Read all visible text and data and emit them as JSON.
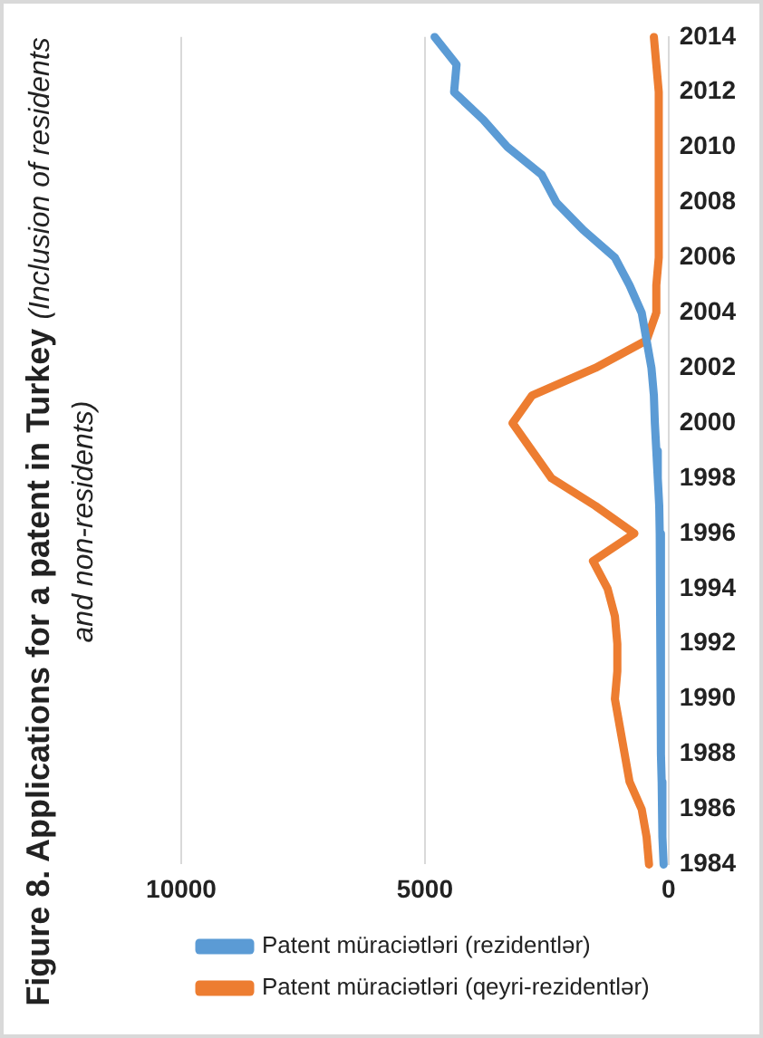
{
  "chart_data": {
    "type": "line",
    "title": "Figure 8. Applications for a patent in Turkey",
    "subtitle": "(Inclusion of residents and non-residents)",
    "categories": [
      "2014",
      null,
      "2012",
      null,
      "2010",
      null,
      "2008",
      null,
      "2006",
      null,
      "2004",
      null,
      "2002",
      null,
      "2000",
      null,
      "1998",
      null,
      "1996",
      null,
      "1994",
      null,
      "1992",
      null,
      "1990",
      null,
      "1988",
      null,
      "1986",
      null,
      "1984"
    ],
    "series": [
      {
        "name": "Patent müraciətləri (rezidentlər)",
        "color": "#5b9bd5",
        "values": [
          4800,
          4350,
          4400,
          3800,
          3300,
          2600,
          2300,
          1750,
          1100,
          800,
          550,
          450,
          350,
          300,
          280,
          250,
          220,
          190,
          180,
          170,
          160,
          160,
          150,
          150,
          150,
          150,
          150,
          140,
          130,
          120,
          100
        ]
      },
      {
        "name": "Patent müraciətləri (qeyri-rezidentlər)",
        "color": "#ed7d31",
        "values": [
          300,
          250,
          200,
          200,
          200,
          200,
          200,
          200,
          200,
          250,
          250,
          450,
          1500,
          2800,
          3200,
          2800,
          2400,
          1500,
          700,
          1550,
          1250,
          1100,
          1050,
          1050,
          1100,
          1000,
          900,
          800,
          550,
          450,
          400
        ]
      }
    ],
    "orientation": "horizontal",
    "xlim": [
      10000,
      0
    ],
    "xticks": [
      0,
      5000,
      10000
    ],
    "grid": "x",
    "legend": "bottom",
    "marker": "none",
    "line_style": "solid"
  }
}
